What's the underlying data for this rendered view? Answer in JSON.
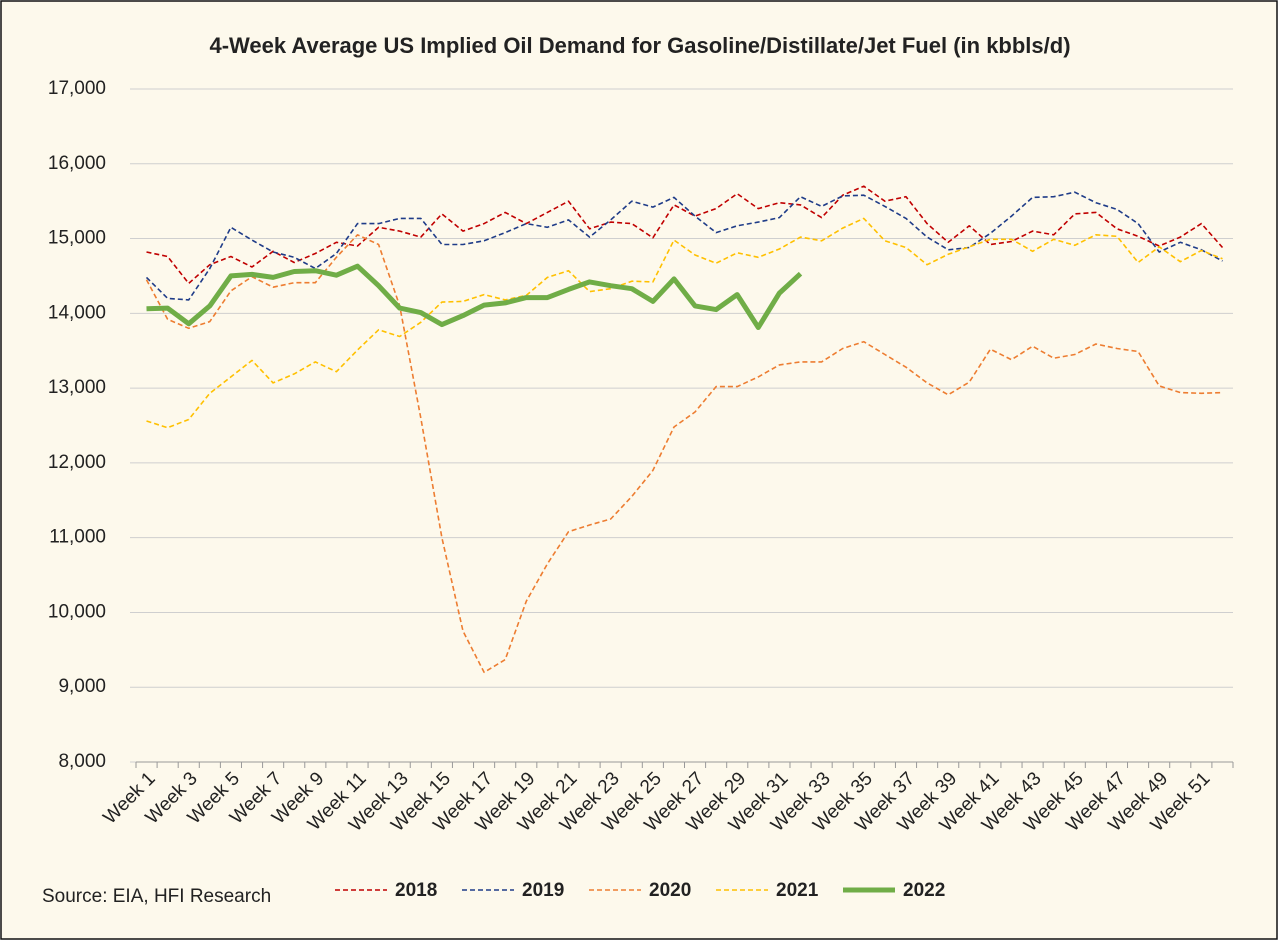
{
  "chart_data": {
    "type": "line",
    "title": "4-Week Average US Implied Oil Demand for Gasoline/Distillate/Jet Fuel (in kbbls/d)",
    "source": "Source: EIA, HFI Research",
    "categories": [
      "Week 1",
      null,
      "Week 3",
      null,
      "Week 5",
      null,
      "Week 7",
      null,
      "Week 9",
      null,
      "Week 11",
      null,
      "Week 13",
      null,
      "Week 15",
      null,
      "Week 17",
      null,
      "Week 19",
      null,
      "Week 21",
      null,
      "Week 23",
      null,
      "Week 25",
      null,
      "Week 27",
      null,
      "Week 29",
      null,
      "Week 31",
      null,
      "Week 33",
      null,
      "Week 35",
      null,
      "Week 37",
      null,
      "Week 39",
      null,
      "Week 41",
      null,
      "Week 43",
      null,
      "Week 45",
      null,
      "Week 47",
      null,
      "Week 49",
      null,
      "Week 51",
      null
    ],
    "ylim": [
      8000,
      17000
    ],
    "yticks": [
      {
        "value": 8000,
        "label": "8,000"
      },
      {
        "value": 9000,
        "label": "9,000"
      },
      {
        "value": 10000,
        "label": "10,000"
      },
      {
        "value": 11000,
        "label": "11,000"
      },
      {
        "value": 12000,
        "label": "12,000"
      },
      {
        "value": 13000,
        "label": "13,000"
      },
      {
        "value": 14000,
        "label": "14,000"
      },
      {
        "value": 15000,
        "label": "15,000"
      },
      {
        "value": 16000,
        "label": "16,000"
      },
      {
        "value": 17000,
        "label": "17,000"
      }
    ],
    "grid": true,
    "legend": "bottom",
    "series": [
      {
        "name": "2018",
        "color": "#c00000",
        "dashed": true,
        "values": [
          14820,
          14760,
          14400,
          14650,
          14760,
          14620,
          14830,
          14680,
          14800,
          14950,
          14900,
          15150,
          15100,
          15020,
          15330,
          15100,
          15200,
          15350,
          15200,
          15350,
          15500,
          15130,
          15220,
          15200,
          15010,
          15450,
          15300,
          15400,
          15600,
          15400,
          15480,
          15450,
          15280,
          15580,
          15700,
          15500,
          15560,
          15200,
          14950,
          15170,
          14920,
          14960,
          15100,
          15050,
          15330,
          15350,
          15130,
          15030,
          14900,
          15020,
          15200,
          14880
        ]
      },
      {
        "name": "2019",
        "color": "#1f3c88",
        "dashed": true,
        "values": [
          14480,
          14200,
          14180,
          14600,
          15150,
          14980,
          14820,
          14750,
          14600,
          14800,
          15200,
          15200,
          15270,
          15270,
          14920,
          14920,
          14970,
          15080,
          15200,
          15150,
          15250,
          15020,
          15250,
          15500,
          15420,
          15550,
          15300,
          15080,
          15170,
          15220,
          15280,
          15560,
          15430,
          15570,
          15580,
          15430,
          15270,
          15020,
          14850,
          14880,
          15070,
          15300,
          15550,
          15560,
          15620,
          15480,
          15390,
          15200,
          14820,
          14950,
          14850,
          14700
        ]
      },
      {
        "name": "2020",
        "color": "#ed7d31",
        "dashed": true,
        "values": [
          14450,
          13920,
          13800,
          13890,
          14300,
          14490,
          14350,
          14410,
          14410,
          14750,
          15050,
          14920,
          14100,
          12600,
          11000,
          9750,
          9200,
          9370,
          10150,
          10650,
          11080,
          11170,
          11250,
          11550,
          11900,
          12480,
          12680,
          13020,
          13020,
          13150,
          13310,
          13350,
          13350,
          13530,
          13620,
          13450,
          13280,
          13070,
          12910,
          13080,
          13520,
          13380,
          13560,
          13400,
          13450,
          13590,
          13530,
          13490,
          13030,
          12940,
          12930,
          12940
        ]
      },
      {
        "name": "2021",
        "color": "#ffc000",
        "dashed": true,
        "values": [
          12560,
          12470,
          12580,
          12930,
          13150,
          13370,
          13070,
          13190,
          13350,
          13220,
          13510,
          13780,
          13690,
          13880,
          14150,
          14160,
          14250,
          14180,
          14240,
          14480,
          14570,
          14290,
          14330,
          14430,
          14420,
          14980,
          14780,
          14670,
          14810,
          14750,
          14860,
          15020,
          14970,
          15140,
          15270,
          14970,
          14880,
          14650,
          14790,
          14890,
          14990,
          14990,
          14830,
          14990,
          14910,
          15050,
          15030,
          14680,
          14890,
          14690,
          14840,
          14730
        ]
      },
      {
        "name": "2022",
        "color": "#70ad47",
        "dashed": false,
        "values": [
          14060,
          14070,
          13860,
          14100,
          14500,
          14520,
          14480,
          14560,
          14570,
          14510,
          14630,
          14370,
          14070,
          14010,
          13850,
          13970,
          14110,
          14140,
          14210,
          14210,
          14320,
          14420,
          14370,
          14330,
          14160,
          14460,
          14100,
          14050,
          14250,
          13810,
          14270,
          14530,
          null,
          null,
          null,
          null,
          null,
          null,
          null,
          null,
          null,
          null,
          null,
          null,
          null,
          null,
          null,
          null,
          null,
          null,
          null,
          null
        ]
      }
    ]
  }
}
